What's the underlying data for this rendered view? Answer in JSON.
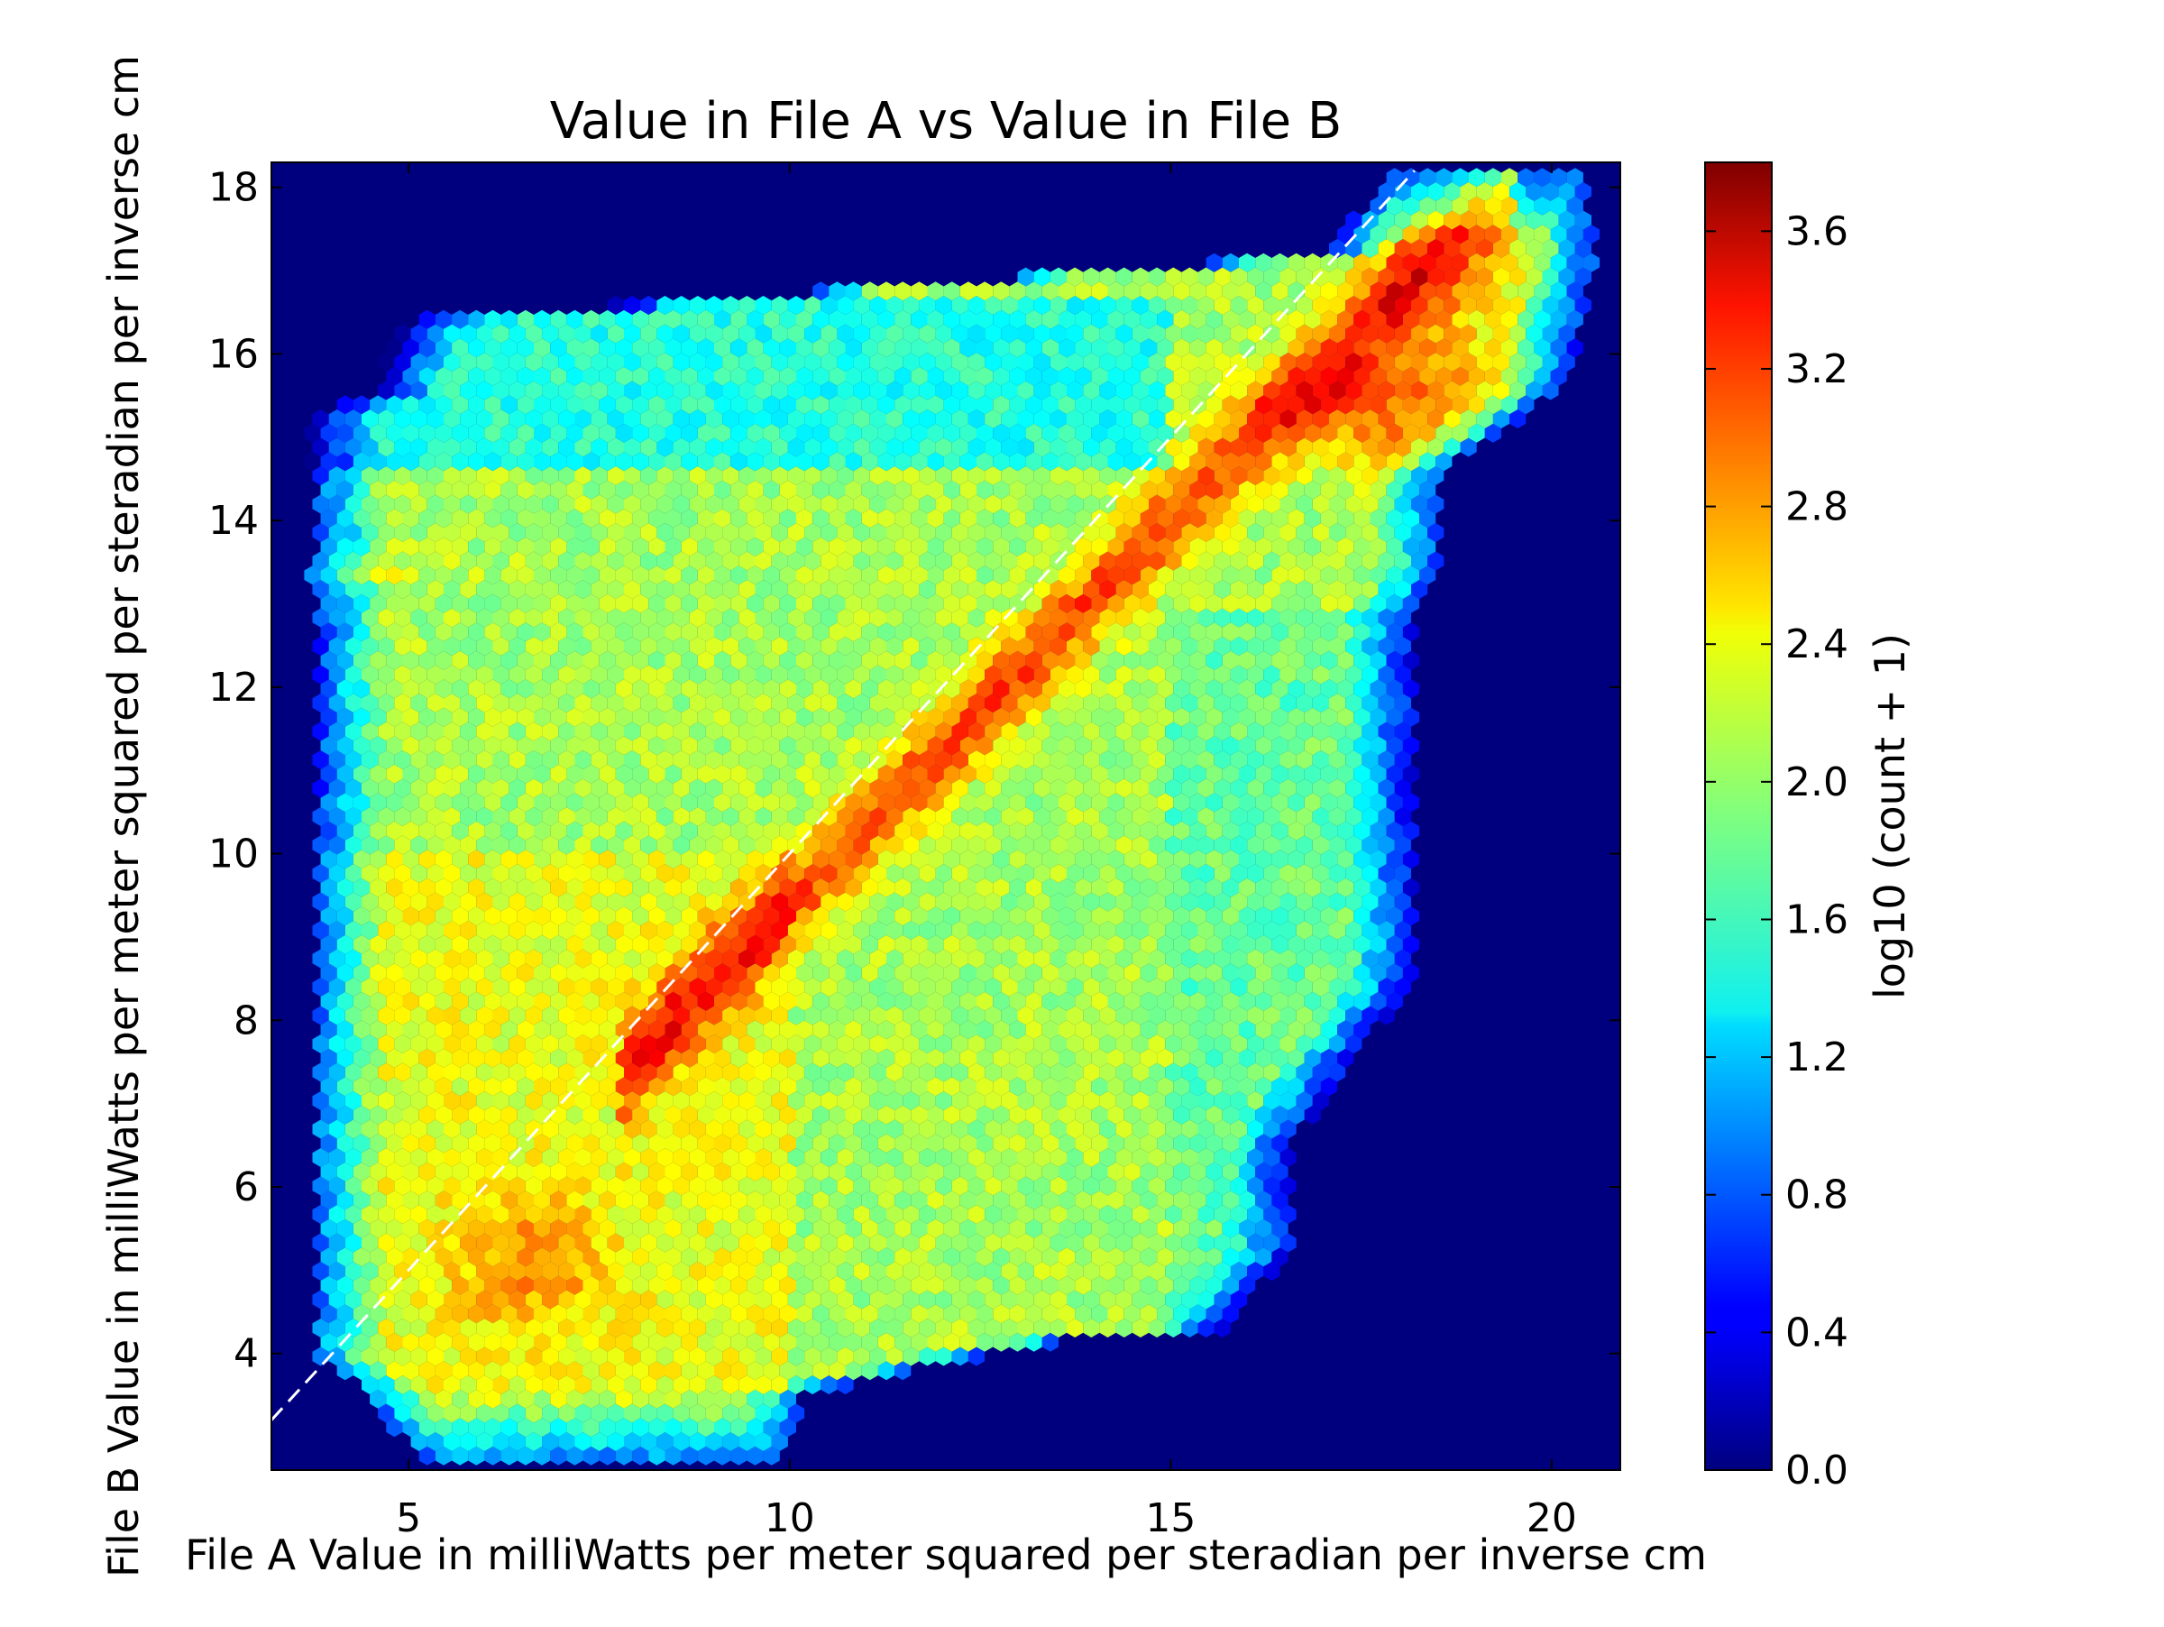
{
  "chart_data": {
    "type": "heatmap",
    "subtype": "hexbin",
    "title": "Value in File A vs Value in File B",
    "xlabel": "File A Value in milliWatts per meter squared per steradian per inverse cm",
    "ylabel": "File B Value in milliWatts per meter squared per steradian per inverse cm",
    "xlim": [
      3.2,
      20.9
    ],
    "ylim": [
      2.6,
      18.3
    ],
    "x_ticks": [
      5,
      10,
      15,
      20
    ],
    "y_ticks": [
      4,
      6,
      8,
      10,
      12,
      14,
      16,
      18
    ],
    "colormap": "jet",
    "background_color": "#00007f",
    "reference_line": {
      "style": "dashed",
      "color": "#ffffff",
      "description": "y = x",
      "x": [
        3.2,
        18.2
      ],
      "y": [
        3.2,
        18.2
      ]
    },
    "colorbar": {
      "label": "log10 (count + 1)",
      "range": [
        0.0,
        3.8
      ],
      "ticks": [
        "0.0",
        "0.4",
        "0.8",
        "1.2",
        "1.6",
        "2.0",
        "2.4",
        "2.8",
        "3.2",
        "3.6"
      ]
    },
    "density_peaks": [
      {
        "x": 17.6,
        "y": 15.2,
        "value": 3.8
      },
      {
        "x": 18.5,
        "y": 16.1,
        "value": 3.5
      },
      {
        "x": 12.3,
        "y": 11.3,
        "value": 3.3
      },
      {
        "x": 13.4,
        "y": 12.3,
        "value": 3.1
      },
      {
        "x": 15.2,
        "y": 13.6,
        "value": 3.1
      },
      {
        "x": 10.8,
        "y": 9.8,
        "value": 3.1
      },
      {
        "x": 9.0,
        "y": 8.6,
        "value": 3.0
      },
      {
        "x": 8.4,
        "y": 7.6,
        "value": 2.9
      },
      {
        "x": 6.5,
        "y": 5.1,
        "value": 2.7
      },
      {
        "x": 4.2,
        "y": 13.4,
        "value": 2.5
      }
    ]
  }
}
